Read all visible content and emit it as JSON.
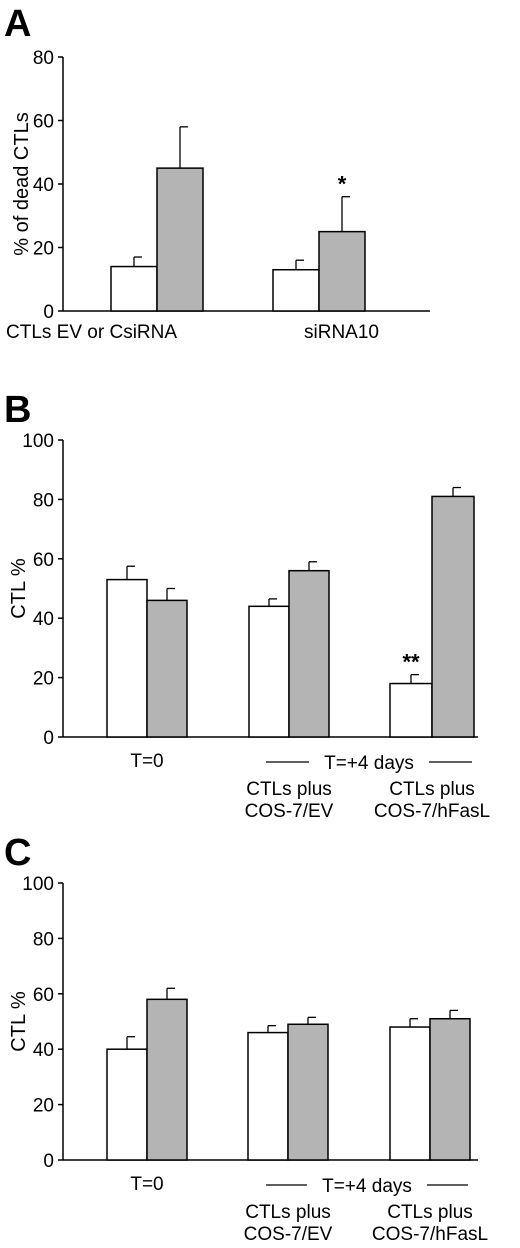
{
  "colors": {
    "bar_white": "#ffffff",
    "bar_gray": "#b4b4b4",
    "stroke": "#000000"
  },
  "chart_data": [
    {
      "panel": "A",
      "type": "bar",
      "ylabel": "% of dead CTLs",
      "ylim": [
        0,
        80
      ],
      "yticks": [
        "0",
        "20",
        "40",
        "60",
        "80"
      ],
      "categories": [
        "CTLs EV or CsiRNA",
        "siRNA10"
      ],
      "series": [
        {
          "values": [
            14,
            13
          ],
          "errors": [
            3,
            3
          ],
          "color": "#ffffff"
        },
        {
          "values": [
            45,
            25
          ],
          "errors": [
            13,
            11
          ],
          "color": "#b4b4b4"
        }
      ],
      "annotations": [
        {
          "text": "*",
          "category": 1,
          "series": 1
        }
      ]
    },
    {
      "panel": "B",
      "type": "bar",
      "ylabel": "CTL %",
      "ylim": [
        0,
        100
      ],
      "yticks": [
        "0",
        "20",
        "40",
        "60",
        "80",
        "100"
      ],
      "group_label": "T=+4 days",
      "categories": [
        "T=0",
        "CTLs plus COS-7/EV",
        "CTLs plus COS-7/hFasL"
      ],
      "category_lines": [
        [
          "T=0"
        ],
        [
          "CTLs plus",
          "COS-7/EV"
        ],
        [
          "CTLs plus",
          "COS-7/hFasL"
        ]
      ],
      "series": [
        {
          "values": [
            53,
            44,
            18
          ],
          "errors": [
            4.5,
            2.5,
            3
          ],
          "color": "#ffffff"
        },
        {
          "values": [
            46,
            56,
            81
          ],
          "errors": [
            4,
            3,
            3
          ],
          "color": "#b4b4b4"
        }
      ],
      "annotations": [
        {
          "text": "**",
          "category": 2,
          "series": 0
        }
      ]
    },
    {
      "panel": "C",
      "type": "bar",
      "ylabel": "CTL %",
      "ylim": [
        0,
        100
      ],
      "yticks": [
        "0",
        "20",
        "40",
        "60",
        "80",
        "100"
      ],
      "group_label": "T=+4 days",
      "categories": [
        "T=0",
        "CTLs plus COS-7/EV",
        "CTLs plus COS-7/hFasL"
      ],
      "category_lines": [
        [
          "T=0"
        ],
        [
          "CTLs plus",
          "COS-7/EV"
        ],
        [
          "CTLs plus",
          "COS-7/hFasL"
        ]
      ],
      "series": [
        {
          "values": [
            40,
            46,
            48
          ],
          "errors": [
            4.5,
            2.5,
            3
          ],
          "color": "#ffffff"
        },
        {
          "values": [
            58,
            49,
            51
          ],
          "errors": [
            4,
            2.5,
            3
          ],
          "color": "#b4b4b4"
        }
      ],
      "annotations": []
    }
  ]
}
